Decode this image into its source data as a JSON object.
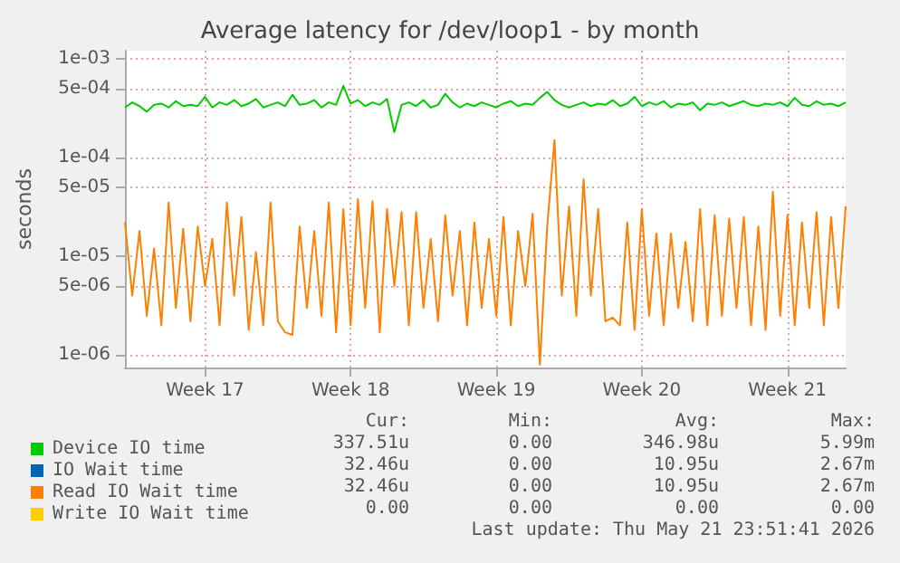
{
  "chart_data": {
    "type": "line",
    "title": "Average latency for /dev/loop1 - by month",
    "ylabel": "seconds",
    "categories": [
      null,
      null,
      null,
      null,
      null,
      null,
      null,
      null,
      null,
      null,
      null,
      "Week 17",
      null,
      null,
      null,
      null,
      null,
      null,
      null,
      null,
      null,
      null,
      null,
      null,
      null,
      null,
      null,
      null,
      null,
      null,
      null,
      "Week 18",
      null,
      null,
      null,
      null,
      null,
      null,
      null,
      null,
      null,
      null,
      null,
      null,
      null,
      null,
      null,
      null,
      null,
      null,
      null,
      "Week 19",
      null,
      null,
      null,
      null,
      null,
      null,
      null,
      null,
      null,
      null,
      null,
      null,
      null,
      null,
      null,
      null,
      null,
      null,
      null,
      "Week 20",
      null,
      null,
      null,
      null,
      null,
      null,
      null,
      null,
      null,
      null,
      null,
      null,
      null,
      null,
      null,
      null,
      null,
      null,
      null,
      "Week 21",
      null,
      null,
      null,
      null,
      null,
      null,
      null,
      null
    ],
    "series": [
      {
        "name": "Device IO time",
        "color": "#00cc00",
        "values": [
          0.00032,
          0.00036,
          0.00033,
          0.00029,
          0.00034,
          0.00035,
          0.00032,
          0.00037,
          0.00033,
          0.00034,
          0.00033,
          0.00041,
          0.00032,
          0.00036,
          0.00034,
          0.00038,
          0.00033,
          0.00035,
          0.00039,
          0.00032,
          0.00034,
          0.00036,
          0.00033,
          0.00043,
          0.00034,
          0.00035,
          0.00038,
          0.00032,
          0.00036,
          0.00034,
          0.00053,
          0.00035,
          0.00038,
          0.00033,
          0.00036,
          0.00034,
          0.00039,
          0.00018,
          0.00034,
          0.00036,
          0.00033,
          0.00038,
          0.00032,
          0.00034,
          0.00044,
          0.00036,
          0.00032,
          0.00035,
          0.00033,
          0.00036,
          0.00034,
          0.00032,
          0.00035,
          0.00037,
          0.00033,
          0.00035,
          0.00034,
          0.0004,
          0.00046,
          0.00038,
          0.00034,
          0.00032,
          0.00034,
          0.00036,
          0.00033,
          0.00035,
          0.00034,
          0.00038,
          0.00033,
          0.00035,
          0.00041,
          0.00033,
          0.00036,
          0.00034,
          0.00037,
          0.00032,
          0.00035,
          0.00034,
          0.00036,
          0.0003,
          0.00035,
          0.00034,
          0.00036,
          0.00033,
          0.00035,
          0.00037,
          0.00034,
          0.00033,
          0.00035,
          0.00034,
          0.00036,
          0.00033,
          0.0004,
          0.00034,
          0.00033,
          0.00037,
          0.00034,
          0.00035,
          0.00033,
          0.00036
        ]
      },
      {
        "name": "IO Wait time",
        "color": "#0066b3",
        "values": [
          null,
          null,
          null,
          null,
          null,
          null,
          null,
          null,
          null,
          null,
          null,
          null,
          null,
          null,
          null,
          null,
          null,
          null,
          null,
          null,
          null,
          null,
          null,
          null,
          null,
          null,
          null,
          null,
          null,
          null,
          null,
          null,
          null,
          null,
          null,
          null,
          null,
          null,
          null,
          null,
          null,
          null,
          null,
          null,
          null,
          null,
          null,
          null,
          null,
          null,
          null,
          null,
          null,
          null,
          null,
          null,
          null,
          null,
          null,
          null,
          null,
          null,
          null,
          null,
          null,
          null,
          null,
          null,
          null,
          null,
          null,
          null,
          null,
          null,
          null,
          null,
          null,
          null,
          null,
          null,
          null,
          null,
          null,
          null,
          null,
          null,
          null,
          null,
          null,
          null,
          null,
          null,
          null,
          null,
          null,
          null,
          null,
          null,
          null,
          null
        ]
      },
      {
        "name": "Read IO Wait time",
        "color": "#ff8000",
        "values": [
          2.2e-05,
          4e-06,
          1.8e-05,
          2.5e-06,
          1.2e-05,
          2e-06,
          3.5e-05,
          3e-06,
          1.9e-05,
          2.2e-06,
          2e-05,
          5e-06,
          1.5e-05,
          2e-06,
          3.5e-05,
          4e-06,
          2.5e-05,
          1.8e-06,
          1.1e-05,
          2e-06,
          3.5e-05,
          2.2e-06,
          1.7e-06,
          1.6e-06,
          2e-05,
          3e-06,
          1.8e-05,
          2.5e-06,
          3.5e-05,
          1.7e-06,
          3e-05,
          2e-06,
          3.8e-05,
          3e-06,
          3.6e-05,
          1.7e-06,
          3e-05,
          5e-06,
          2.8e-05,
          2e-06,
          2.8e-05,
          3e-06,
          1.5e-05,
          2.2e-06,
          2.6e-05,
          4e-06,
          1.8e-05,
          2e-06,
          2.2e-05,
          3e-06,
          1.5e-05,
          2.5e-06,
          2.5e-05,
          2e-06,
          1.8e-05,
          5e-06,
          2.7e-05,
          8e-07,
          2e-05,
          0.00015,
          4e-06,
          3.2e-05,
          2.5e-06,
          6e-05,
          4e-06,
          3e-05,
          2.2e-06,
          2.4e-06,
          2e-06,
          2.2e-05,
          1.8e-06,
          3e-05,
          2.5e-06,
          1.7e-05,
          2e-06,
          1.7e-05,
          3e-06,
          1.4e-05,
          2.2e-06,
          3e-05,
          2e-06,
          2.6e-05,
          2.5e-06,
          2.4e-05,
          3e-06,
          2.5e-05,
          2e-06,
          2e-05,
          1.8e-06,
          4.5e-05,
          2.5e-06,
          2.6e-05,
          2e-06,
          2.2e-05,
          3e-06,
          2.8e-05,
          2e-06,
          2.5e-05,
          3e-06,
          3.2e-05
        ]
      },
      {
        "name": "Write IO Wait time",
        "color": "#ffcc00",
        "values": [
          null,
          null,
          null,
          null,
          null,
          null,
          null,
          null,
          null,
          null,
          null,
          null,
          null,
          null,
          null,
          null,
          null,
          null,
          null,
          null,
          null,
          null,
          null,
          null,
          null,
          null,
          null,
          null,
          null,
          null,
          null,
          null,
          null,
          null,
          null,
          null,
          null,
          null,
          null,
          null,
          null,
          null,
          null,
          null,
          null,
          null,
          null,
          null,
          null,
          null,
          null,
          null,
          null,
          null,
          null,
          null,
          null,
          null,
          null,
          null,
          null,
          null,
          null,
          null,
          null,
          null,
          null,
          null,
          null,
          null,
          null,
          null,
          null,
          null,
          null,
          null,
          null,
          null,
          null,
          null,
          null,
          null,
          null,
          null,
          null,
          null,
          null,
          null,
          null,
          null,
          null,
          null,
          null,
          null,
          null,
          null,
          null,
          null,
          null,
          null
        ]
      }
    ],
    "ylim": [
      7.5e-07,
      0.0012
    ],
    "yticks": [
      {
        "value": 1e-06,
        "label": "1e-06"
      },
      {
        "value": 5e-06,
        "label": "5e-06"
      },
      {
        "value": 1e-05,
        "label": "1e-05"
      },
      {
        "value": 5e-05,
        "label": "5e-05"
      },
      {
        "value": 0.0001,
        "label": "1e-04"
      },
      {
        "value": 0.0005,
        "label": "5e-04"
      },
      {
        "value": 0.001,
        "label": "1e-03"
      }
    ],
    "log": "y",
    "grid": true,
    "legend": "bottom",
    "annotations": [
      "Cur:",
      "Min:",
      "Avg:",
      "Max:",
      "337.51u",
      "0.00",
      "346.98u",
      "5.99m",
      "32.46u",
      "0.00",
      "10.95u",
      "2.67m",
      "32.46u",
      "0.00",
      "10.95u",
      "2.67m",
      "0.00",
      "0.00",
      "0.00",
      "0.00",
      "Last update: Thu May 21 23:51:41 2026"
    ]
  }
}
